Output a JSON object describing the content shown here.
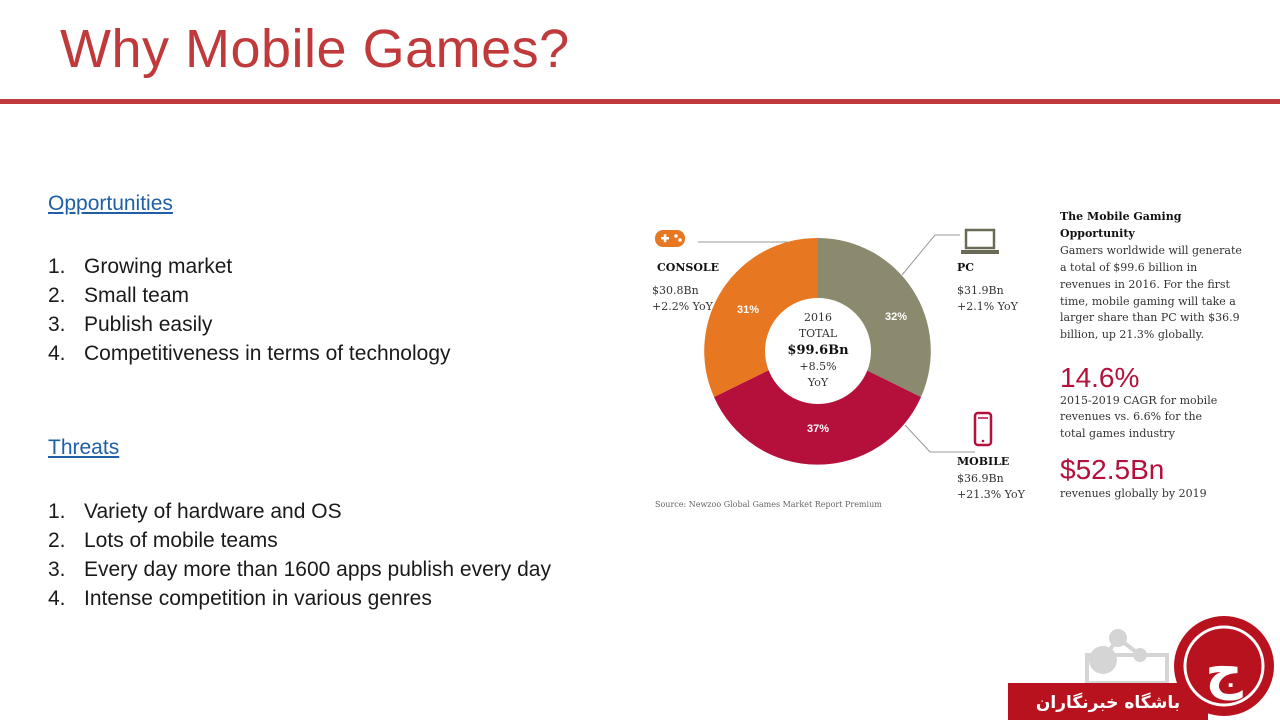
{
  "slide": {
    "title": "Why Mobile Games?",
    "opportunities": {
      "heading": "Opportunities",
      "items": [
        {
          "num": "1.",
          "text": "Growing market"
        },
        {
          "num": "2.",
          "text": "Small team"
        },
        {
          "num": "3.",
          "text": "Publish easily"
        },
        {
          "num": "4.",
          "text": "Competitiveness in terms of technology"
        }
      ]
    },
    "threats": {
      "heading": "Threats",
      "items": [
        {
          "num": "1.",
          "text": "Variety of hardware and OS"
        },
        {
          "num": "2.",
          "text": "Lots of mobile teams"
        },
        {
          "num": "3.",
          "text": "Every day more than 1600 apps publish every day"
        },
        {
          "num": "4.",
          "text": "Intense competition in various genres"
        }
      ]
    }
  },
  "infographic": {
    "center": {
      "year": "2016",
      "label": "TOTAL",
      "total": "$99.6Bn",
      "growth": "+8.5%",
      "growth_unit": "YoY"
    },
    "segments": {
      "console": {
        "name": "CONSOLE",
        "value": "$30.8Bn",
        "yoy": "+2.2% YoY",
        "share": "31%",
        "color": "#e87722"
      },
      "pc": {
        "name": "PC",
        "value": "$31.9Bn",
        "yoy": "+2.1% YoY",
        "share": "32%",
        "color": "#8c8a6e"
      },
      "mobile": {
        "name": "MOBILE",
        "value": "$36.9Bn",
        "yoy": "+21.3% YoY",
        "share": "37%",
        "color": "#b5103c"
      }
    },
    "source": "Source: Newzoo Global Games Market Report Premium",
    "sidebar": {
      "heading_line1": "The Mobile Gaming",
      "heading_line2": "Opportunity",
      "body_lines": [
        "Gamers worldwide will generate",
        "a total of $99.6 billion in",
        "revenues in 2016. For the first",
        "time, mobile gaming will take a",
        "larger share than PC with $36.9",
        "billion, up 21.3% globally."
      ],
      "stat1": "14.6%",
      "stat1_lines": [
        "2015-2019 CAGR for mobile",
        "revenues vs. 6.6% for the",
        "total games industry"
      ],
      "stat2": "$52.5Bn",
      "stat2_text": "revenues globally by 2019"
    },
    "colors": {
      "accent_red": "#c0393b",
      "link_blue": "#1f5fa6"
    }
  },
  "watermark": {
    "text": "باشگاه خبرنگاران",
    "logo_letter": "ج"
  }
}
